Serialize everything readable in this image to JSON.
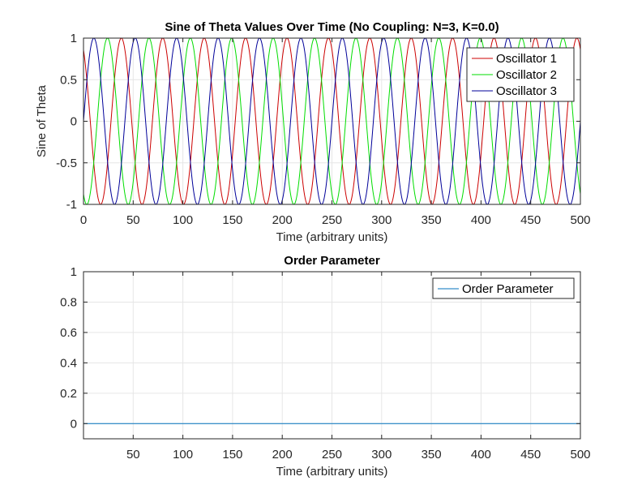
{
  "chart_data": [
    {
      "type": "line",
      "title": "Sine of Theta Values Over Time (No Coupling: N=3, K=0.0)",
      "xlabel": "Time (arbitrary units)",
      "ylabel": "Sine of Theta",
      "xlim": [
        0,
        500
      ],
      "ylim": [
        -1,
        1
      ],
      "xticks": [
        0,
        50,
        100,
        150,
        200,
        250,
        300,
        350,
        400,
        450,
        500
      ],
      "yticks": [
        -1,
        -0.5,
        0,
        0.5,
        1
      ],
      "xtick_labels": [
        "0",
        "50",
        "100",
        "150",
        "200",
        "250",
        "300",
        "350",
        "400",
        "450",
        "500"
      ],
      "ytick_labels": [
        "-1",
        "-0.5",
        "0",
        "0.5",
        "1"
      ],
      "grid": true,
      "legend_position": "top-right",
      "series": [
        {
          "name": "Oscillator 1",
          "color": "#cc0000",
          "amplitude": 1,
          "period": 41.67,
          "phase_rad": 2.11,
          "x_range": [
            0,
            500
          ]
        },
        {
          "name": "Oscillator 2",
          "color": "#00dd00",
          "amplitude": 1,
          "period": 41.67,
          "phase_rad": 4.21,
          "x_range": [
            0,
            500
          ]
        },
        {
          "name": "Oscillator 3",
          "color": "#000099",
          "amplitude": 1,
          "period": 41.67,
          "phase_rad": 0.0,
          "x_range": [
            0,
            500
          ]
        }
      ]
    },
    {
      "type": "line",
      "title": "Order Parameter",
      "xlabel": "Time (arbitrary units)",
      "ylabel": "",
      "xlim": [
        0,
        500
      ],
      "ylim": [
        -0.1,
        1
      ],
      "xticks": [
        50,
        100,
        150,
        200,
        250,
        300,
        350,
        400,
        450,
        500
      ],
      "yticks": [
        0,
        0.2,
        0.4,
        0.6,
        0.8,
        1
      ],
      "xtick_labels": [
        "50",
        "100",
        "150",
        "200",
        "250",
        "300",
        "350",
        "400",
        "450",
        "500"
      ],
      "ytick_labels": [
        "0",
        "0.2",
        "0.4",
        "0.6",
        "0.8",
        "1"
      ],
      "grid": true,
      "legend_position": "top-right",
      "series": [
        {
          "name": "Order Parameter",
          "color": "#0072bd",
          "x": [
            0,
            500
          ],
          "values": [
            0,
            0
          ]
        }
      ]
    }
  ]
}
